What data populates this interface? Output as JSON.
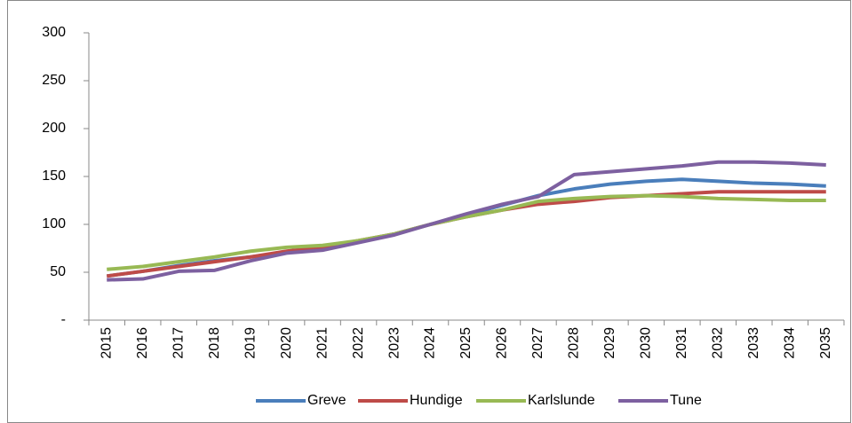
{
  "chart_data": {
    "type": "line",
    "categories": [
      "2015",
      "2016",
      "2017",
      "2018",
      "2019",
      "2020",
      "2021",
      "2022",
      "2023",
      "2024",
      "2025",
      "2026",
      "2027",
      "2028",
      "2029",
      "2030",
      "2031",
      "2032",
      "2033",
      "2034",
      "2035"
    ],
    "series": [
      {
        "name": "Greve",
        "color": "#4a7ebb",
        "values": [
          46,
          51,
          57,
          62,
          66,
          71,
          75,
          82,
          90,
          100,
          110,
          120,
          130,
          137,
          142,
          145,
          147,
          145,
          143,
          142,
          140
        ]
      },
      {
        "name": "Hundige",
        "color": "#be4b48",
        "values": [
          46,
          51,
          56,
          61,
          66,
          72,
          76,
          83,
          90,
          100,
          108,
          115,
          121,
          124,
          128,
          130,
          132,
          134,
          134,
          134,
          134
        ]
      },
      {
        "name": "Karlslunde",
        "color": "#98b954",
        "values": [
          53,
          56,
          61,
          66,
          72,
          76,
          78,
          83,
          90,
          100,
          108,
          115,
          124,
          127,
          129,
          130,
          129,
          127,
          126,
          125,
          125
        ]
      },
      {
        "name": "Tune",
        "color": "#7d60a0",
        "values": [
          42,
          43,
          51,
          52,
          62,
          70,
          73,
          81,
          89,
          100,
          111,
          121,
          129,
          152,
          155,
          158,
          161,
          165,
          165,
          164,
          162
        ]
      }
    ],
    "ylim": [
      0,
      300
    ],
    "yticks": [
      {
        "value": 0,
        "label": "-"
      },
      50,
      100,
      150,
      200,
      250,
      300
    ],
    "grid": false,
    "legend": "bottom"
  }
}
